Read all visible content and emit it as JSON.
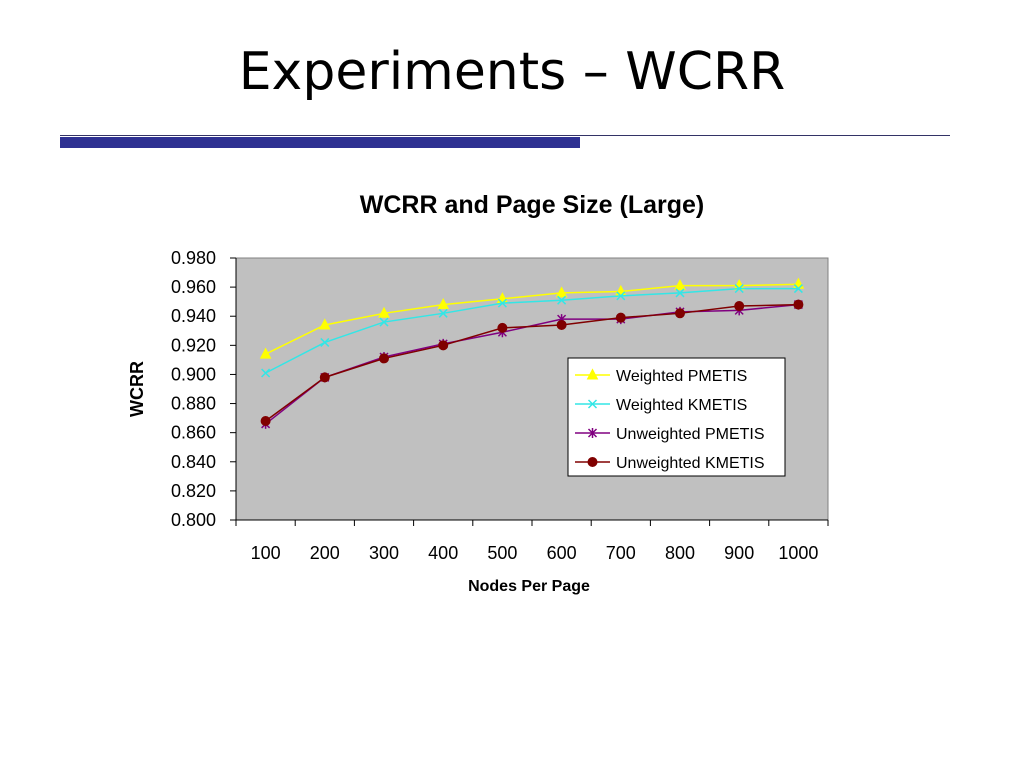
{
  "slide": {
    "title": "Experiments – WCRR"
  },
  "chart_data": {
    "type": "line",
    "title": "WCRR and Page Size (Large)",
    "xlabel": "Nodes Per Page",
    "ylabel": "WCRR",
    "categories": [
      "100",
      "200",
      "300",
      "400",
      "500",
      "600",
      "700",
      "800",
      "900",
      "1000"
    ],
    "y_ticks": [
      "0.800",
      "0.820",
      "0.840",
      "0.860",
      "0.880",
      "0.900",
      "0.920",
      "0.940",
      "0.960",
      "0.980"
    ],
    "ylim": [
      0.8,
      0.98
    ],
    "grid": false,
    "plot_background": "#c0c0c0",
    "legend_position": "right-center inside plot",
    "series": [
      {
        "name": "Weighted PMETIS",
        "color": "#ffff00",
        "marker": "triangle",
        "values": [
          0.914,
          0.934,
          0.942,
          0.948,
          0.952,
          0.956,
          0.957,
          0.961,
          0.961,
          0.962
        ]
      },
      {
        "name": "Weighted KMETIS",
        "color": "#33e6e6",
        "marker": "x",
        "values": [
          0.901,
          0.922,
          0.936,
          0.942,
          0.949,
          0.951,
          0.954,
          0.956,
          0.959,
          0.959
        ]
      },
      {
        "name": "Unweighted PMETIS",
        "color": "#800080",
        "marker": "star",
        "values": [
          0.866,
          0.898,
          0.912,
          0.921,
          0.929,
          0.938,
          0.938,
          0.943,
          0.944,
          0.948
        ]
      },
      {
        "name": "Unweighted KMETIS",
        "color": "#800000",
        "marker": "circle",
        "values": [
          0.868,
          0.898,
          0.911,
          0.92,
          0.932,
          0.934,
          0.939,
          0.942,
          0.947,
          0.948
        ]
      }
    ]
  }
}
